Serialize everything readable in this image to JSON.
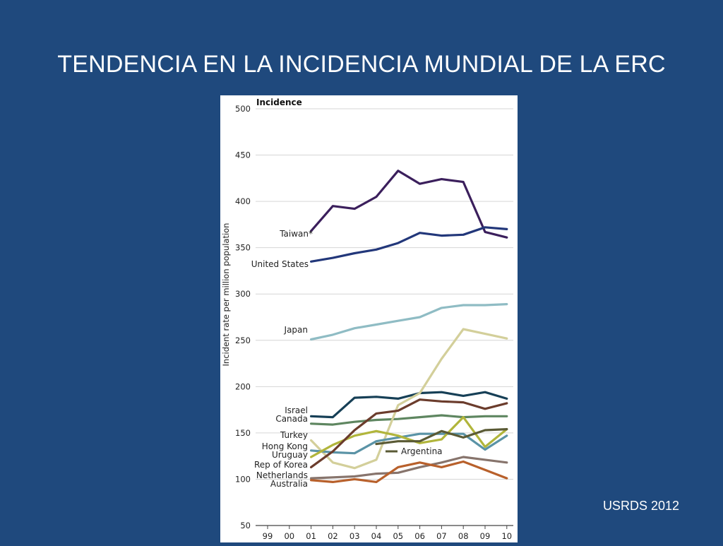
{
  "slide": {
    "title": "TENDENCIA EN LA INCIDENCIA MUNDIAL DE LA ERC",
    "source": "USRDS 2012"
  },
  "chart_data": {
    "type": "line",
    "title": "Incidence",
    "xlabel": "",
    "ylabel": "Incident rate per million population",
    "categories": [
      "99",
      "00",
      "01",
      "02",
      "03",
      "04",
      "05",
      "06",
      "07",
      "08",
      "09",
      "10"
    ],
    "yticks": [
      50,
      100,
      150,
      200,
      250,
      300,
      350,
      400,
      450,
      500
    ],
    "ylim": [
      50,
      500
    ],
    "grid": true,
    "series": [
      {
        "name": "Taiwan*",
        "color": "#3b1f5c",
        "values": [
          null,
          null,
          368,
          395,
          392,
          405,
          433,
          419,
          424,
          421,
          367,
          361
        ]
      },
      {
        "name": "United States",
        "color": "#22377a",
        "values": [
          null,
          null,
          335,
          339,
          344,
          348,
          355,
          366,
          363,
          364,
          372,
          370
        ]
      },
      {
        "name": "Japan",
        "color": "#8fbcc4",
        "values": [
          null,
          null,
          251,
          256,
          263,
          267,
          271,
          275,
          285,
          288,
          288,
          289
        ]
      },
      {
        "name": "Israel",
        "color": "#163f56",
        "values": [
          null,
          null,
          168,
          167,
          188,
          189,
          187,
          193,
          194,
          190,
          194,
          187
        ]
      },
      {
        "name": "Canada",
        "color": "#5e8660",
        "values": [
          null,
          null,
          160,
          159,
          162,
          164,
          165,
          167,
          169,
          167,
          168,
          168
        ]
      },
      {
        "name": "Turkey",
        "color": "#d3cf9a",
        "values": [
          null,
          null,
          142,
          118,
          112,
          121,
          180,
          193,
          230,
          262,
          257,
          252
        ]
      },
      {
        "name": "Hong Kong",
        "color": "#5a93a6",
        "values": [
          null,
          null,
          131,
          129,
          128,
          141,
          145,
          149,
          149,
          149,
          132,
          147
        ]
      },
      {
        "name": "Uruguay",
        "color": "#b1b53b",
        "values": [
          null,
          null,
          124,
          137,
          147,
          152,
          147,
          139,
          143,
          167,
          135,
          154
        ]
      },
      {
        "name": "Argentina",
        "color": "#5a5a35",
        "values": [
          null,
          null,
          null,
          null,
          null,
          138,
          141,
          141,
          152,
          145,
          153,
          154
        ]
      },
      {
        "name": "Rep of Korea",
        "color": "#6b3c2c",
        "values": [
          null,
          null,
          113,
          130,
          153,
          171,
          174,
          186,
          184,
          183,
          176,
          182
        ]
      },
      {
        "name": "Netherlands",
        "color": "#87746c",
        "values": [
          null,
          null,
          101,
          102,
          103,
          106,
          107,
          113,
          118,
          124,
          121,
          118
        ]
      },
      {
        "name": "Australia",
        "color": "#b8602b",
        "values": [
          null,
          null,
          99,
          97,
          100,
          97,
          113,
          118,
          113,
          119,
          110,
          101
        ]
      }
    ],
    "series_labels": [
      {
        "series": "Taiwan*",
        "text": "Taiwan*"
      },
      {
        "series": "United States",
        "text": "United States"
      },
      {
        "series": "Japan",
        "text": "Japan"
      },
      {
        "series": "Israel",
        "text": "Israel"
      },
      {
        "series": "Canada",
        "text": "Canada"
      },
      {
        "series": "Turkey",
        "text": "Turkey"
      },
      {
        "series": "Hong Kong",
        "text": "Hong Kong"
      },
      {
        "series": "Uruguay",
        "text": "Uruguay"
      },
      {
        "series": "Rep of Korea",
        "text": "Rep of Korea"
      },
      {
        "series": "Netherlands",
        "text": "Netherlands"
      },
      {
        "series": "Australia",
        "text": "Australia"
      }
    ],
    "legend": {
      "text": "Argentina",
      "series": "Argentina",
      "placement": "bottom-center"
    }
  }
}
